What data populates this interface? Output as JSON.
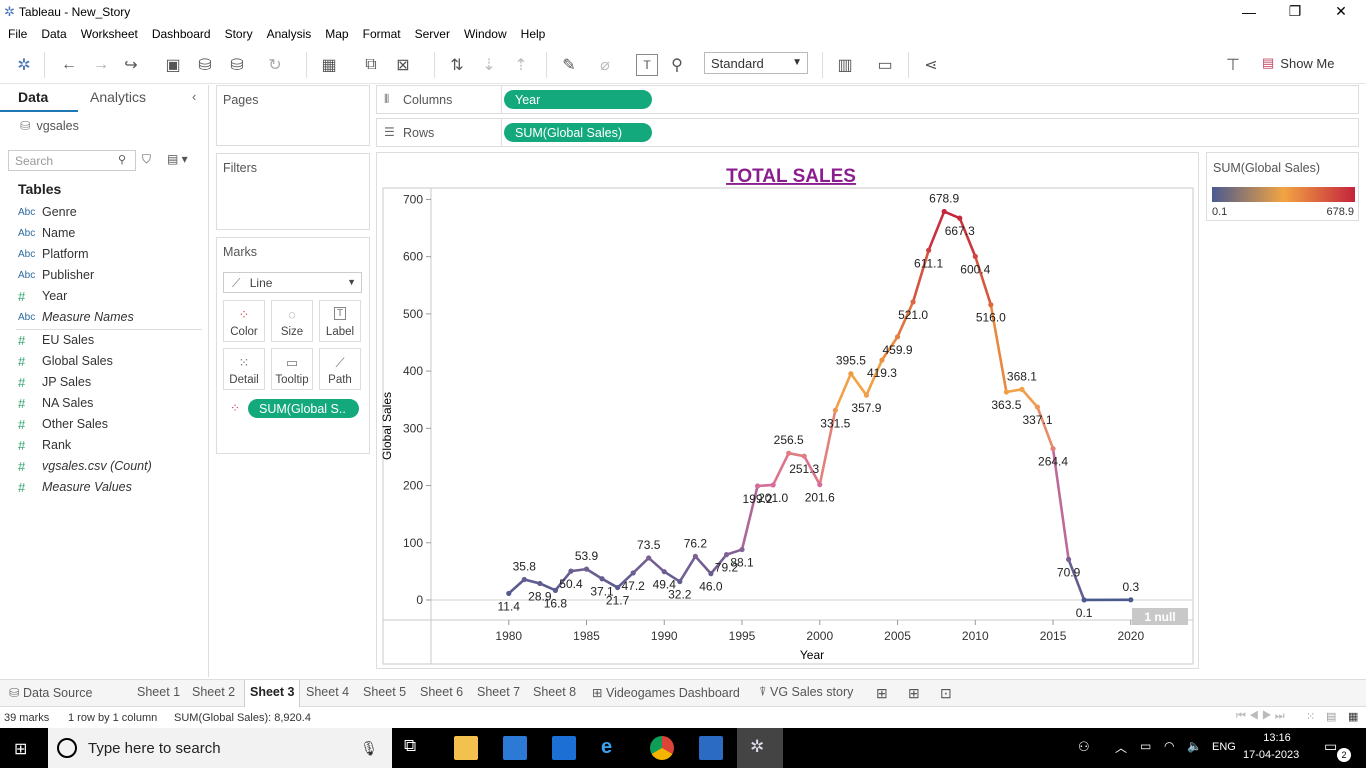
{
  "window": {
    "title": "Tableau - New_Story",
    "min": "—",
    "restore": "❐",
    "close": "✕"
  },
  "menu": [
    "File",
    "Data",
    "Worksheet",
    "Dashboard",
    "Story",
    "Analysis",
    "Map",
    "Format",
    "Server",
    "Window",
    "Help"
  ],
  "toolbar": {
    "fit_value": "Standard",
    "show_me": "Show Me"
  },
  "data_panel": {
    "tabs": [
      "Data",
      "Analytics"
    ],
    "datasource": "vgsales",
    "search_placeholder": "Search",
    "tables_header": "Tables",
    "fields": [
      {
        "type": "Abc",
        "name": "Genre",
        "italic": false
      },
      {
        "type": "Abc",
        "name": "Name",
        "italic": false
      },
      {
        "type": "Abc",
        "name": "Platform",
        "italic": false
      },
      {
        "type": "Abc",
        "name": "Publisher",
        "italic": false
      },
      {
        "type": "#",
        "name": "Year",
        "italic": false
      },
      {
        "type": "Abc",
        "name": "Measure Names",
        "italic": true
      },
      {
        "type": "#",
        "name": "EU Sales",
        "italic": false
      },
      {
        "type": "#",
        "name": "Global Sales",
        "italic": false
      },
      {
        "type": "#",
        "name": "JP Sales",
        "italic": false
      },
      {
        "type": "#",
        "name": "NA Sales",
        "italic": false
      },
      {
        "type": "#",
        "name": "Other Sales",
        "italic": false
      },
      {
        "type": "#",
        "name": "Rank",
        "italic": false
      },
      {
        "type": "#",
        "name": "vgsales.csv (Count)",
        "italic": true
      },
      {
        "type": "#",
        "name": "Measure Values",
        "italic": true
      }
    ]
  },
  "cards": {
    "pages": "Pages",
    "filters": "Filters",
    "marks": "Marks",
    "mark_type": "Line",
    "mark_buttons": [
      "Color",
      "Size",
      "Label",
      "Detail",
      "Tooltip",
      "Path"
    ],
    "marks_pill": "SUM(Global S.."
  },
  "shelves": {
    "columns_label": "Columns",
    "columns_pill": "Year",
    "rows_label": "Rows",
    "rows_pill": "SUM(Global Sales)"
  },
  "legend": {
    "title": "SUM(Global Sales)",
    "min": "0.1",
    "max": "678.9"
  },
  "sheet_tabs": [
    "Data Source",
    "Sheet 1",
    "Sheet 2",
    "Sheet 3",
    "Sheet 4",
    "Sheet 5",
    "Sheet 6",
    "Sheet 7",
    "Sheet 8",
    "Videogames Dashboard",
    "VG Sales story"
  ],
  "active_tab": "Sheet 3",
  "status": {
    "marks": "39 marks",
    "dims": "1 row by 1 column",
    "sum": "SUM(Global Sales): 8,920.4"
  },
  "taskbar": {
    "search_placeholder": "Type here to search",
    "lang": "ENG",
    "time": "13:16",
    "date": "17-04-2023",
    "notif": "2"
  },
  "colors": {
    "pill": "#14a97c",
    "grad_low": "#4a5a8f",
    "grad_mid": "#f2a443",
    "grad_high": "#c4243c",
    "title": "#8b1e8f"
  },
  "chart_data": {
    "type": "line",
    "title": "TOTAL SALES",
    "xlabel": "Year",
    "ylabel": "Global Sales",
    "xlim": [
      1975,
      2024
    ],
    "ylim": [
      -35,
      720
    ],
    "xticks": [
      1980,
      1985,
      1990,
      1995,
      2000,
      2005,
      2010,
      2015,
      2020
    ],
    "yticks": [
      0,
      100,
      200,
      300,
      400,
      500,
      600,
      700
    ],
    "null_indicator": "1 null",
    "x": [
      1980,
      1981,
      1982,
      1983,
      1984,
      1985,
      1986,
      1987,
      1988,
      1989,
      1990,
      1991,
      1992,
      1993,
      1994,
      1995,
      1996,
      1997,
      1998,
      1999,
      2000,
      2001,
      2002,
      2003,
      2004,
      2005,
      2006,
      2007,
      2008,
      2009,
      2010,
      2011,
      2012,
      2013,
      2014,
      2015,
      2016,
      2017,
      2020
    ],
    "values": [
      11.4,
      35.8,
      28.9,
      16.8,
      50.4,
      53.9,
      37.1,
      21.7,
      47.2,
      73.5,
      49.4,
      32.2,
      76.2,
      46.0,
      79.2,
      88.1,
      199.2,
      201.0,
      256.5,
      251.3,
      201.6,
      331.5,
      395.5,
      357.9,
      419.3,
      459.9,
      521.0,
      611.1,
      678.9,
      667.3,
      600.4,
      516.0,
      363.5,
      368.1,
      337.1,
      264.4,
      70.9,
      0.1,
      0.3
    ],
    "labels": [
      "11.4",
      "35.8",
      "28.9",
      "16.8",
      "50.4",
      "53.9",
      "37.1",
      "21.7",
      "47.2",
      "73.5",
      "49.4",
      "32.2",
      "76.2",
      "46.0",
      "79.2",
      "88.1",
      "199.2",
      "201.0",
      "256.5",
      "251.3",
      "201.6",
      "331.5",
      "395.5",
      "357.9",
      "419.3",
      "459.9",
      "521.0",
      "611.1",
      "678.9",
      "667.3",
      "600.4",
      "516.0",
      "363.5",
      "368.1",
      "337.1",
      "264.4",
      "70.9",
      "0.1",
      "0.3"
    ]
  }
}
